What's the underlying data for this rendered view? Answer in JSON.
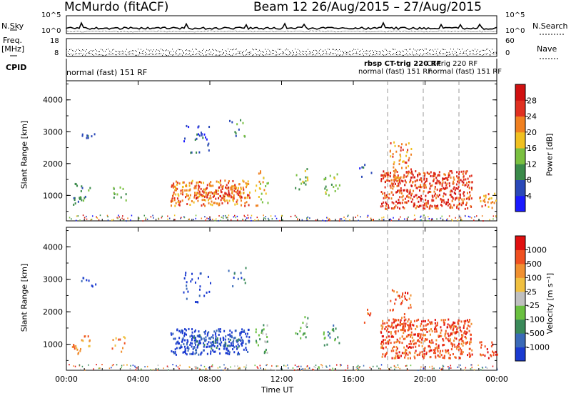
{
  "header": {
    "station": "McMurdo (fitACF)",
    "beam_date": "Beam 12 26/Aug/2015 – 27/Aug/2015"
  },
  "top_panels": {
    "nsky_label": "N.Sky",
    "nsky_ticks": [
      "10^5",
      "10^0"
    ],
    "nsearch_label": "N.Search",
    "nsearch_ticks": [
      "10^5",
      "10^0"
    ],
    "freq_label_1": "Freq.",
    "freq_label_2": "[MHz]",
    "freq_ticks": [
      "18",
      "8"
    ],
    "nave_label": "Nave",
    "nave_ticks": [
      "60",
      "0"
    ],
    "cpid_label": "CPID",
    "cpid_text_left": "normal (fast) 151 RF",
    "cpid_text_right_1": "rbsp CT-trig 220 RF",
    "cpid_text_right_2": "normal (fast) 151 RF",
    "cpid_text_right_3": "CT-trig 220 RF",
    "cpid_text_right_4": "normal (fast) 151 RF"
  },
  "chart_data": [
    {
      "type": "heatmap",
      "ylabel": "Slant Range [km]",
      "y_ticks": [
        "1000",
        "2000",
        "3000",
        "4000"
      ],
      "ylim": [
        200,
        4600
      ],
      "colorbar_label": "Power [dB]",
      "colorbar_ticks": [
        "4",
        "8",
        "12",
        "16",
        "20",
        "24",
        "28"
      ],
      "colorbar_colors": [
        "#1a1aff",
        "#2a48b8",
        "#3a8a4a",
        "#7ac040",
        "#f0c020",
        "#f08020",
        "#e03020",
        "#d01010"
      ]
    },
    {
      "type": "heatmap",
      "ylabel": "Slant Range [km]",
      "y_ticks": [
        "1000",
        "2000",
        "3000",
        "4000"
      ],
      "ylim": [
        200,
        4600
      ],
      "colorbar_label": "Velocity [m s⁻¹]",
      "colorbar_ticks": [
        "1000",
        "500",
        "100",
        "25",
        "-25",
        "-100",
        "-500",
        "-1000"
      ],
      "colorbar_colors": [
        "#1a3ad0",
        "#3a6ab8",
        "#3a8a5a",
        "#6ac040",
        "#c0c0c0",
        "#f0c040",
        "#f09030",
        "#f05020",
        "#e01010"
      ]
    }
  ],
  "x_axis": {
    "label": "Time UT",
    "ticks": [
      "00:00",
      "04:00",
      "08:00",
      "12:00",
      "16:00",
      "20:00",
      "00:00"
    ]
  }
}
